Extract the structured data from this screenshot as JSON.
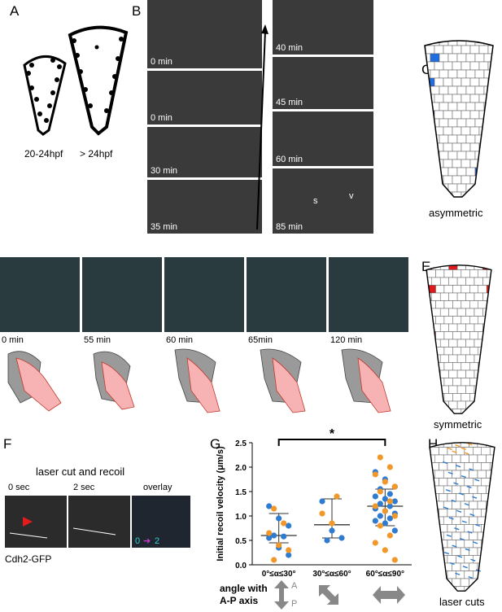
{
  "panels": {
    "A": {
      "label": "A",
      "caption1": "20-24hpf",
      "caption2": "> 24hpf"
    },
    "B": {
      "label": "B",
      "times": [
        "0 min",
        "0 min",
        "30 min",
        "35 min",
        "40 min",
        "45 min",
        "60 min",
        "85 min"
      ],
      "mark_s": "s",
      "mark_v": "v"
    },
    "C": {
      "label": "C",
      "caption": "asymmetric",
      "fill": "#1f6fe0"
    },
    "D": {
      "label": "D",
      "times": [
        "0 min",
        "55 min",
        "60 min",
        "65min",
        "120 min"
      ]
    },
    "E": {
      "label": "E",
      "caption": "symmetric",
      "fill": "#e0191b"
    },
    "F": {
      "label": "F",
      "title": "laser cut and recoil",
      "t0": "0 sec",
      "t1": "2 sec",
      "overlay": "overlay",
      "ov0": "0",
      "ov2": "2",
      "gene": "Cdh2-GFP"
    },
    "G": {
      "label": "G",
      "star": "*",
      "axis_title": "angle with",
      "axis_title2": "A-P axis",
      "A": "A",
      "P": "P"
    },
    "H": {
      "label": "H",
      "caption": "laser cuts"
    }
  },
  "chart_data": {
    "type": "scatter",
    "ylabel": "Initial recoil velocity (μm/s)",
    "ylim": [
      0,
      2.5
    ],
    "yticks": [
      "0.0",
      "0.5",
      "1.0",
      "1.5",
      "2.0",
      "2.5"
    ],
    "categories": [
      "0°≤α≤30°",
      "30°≤α≤60°",
      "60°≤α≤90°"
    ],
    "groups": [
      {
        "median": 0.6,
        "q1": 0.45,
        "q3": 1.05,
        "blue": [
          1.2,
          0.95,
          0.8,
          0.6,
          0.58,
          0.55,
          0.35,
          0.2
        ],
        "orange": [
          1.15,
          0.85,
          0.65,
          0.4,
          0.3,
          0.1
        ]
      },
      {
        "median": 0.82,
        "q1": 0.55,
        "q3": 1.35,
        "blue": [
          1.3,
          0.7,
          0.55,
          0.5
        ],
        "orange": [
          1.4,
          1.05,
          0.85
        ]
      },
      {
        "median": 1.2,
        "q1": 0.8,
        "q3": 1.55,
        "blue": [
          1.9,
          1.75,
          1.6,
          1.55,
          1.45,
          1.4,
          1.35,
          1.3,
          1.25,
          1.2,
          1.15,
          1.1,
          1.05,
          1.0,
          0.95,
          0.9,
          0.85,
          0.7
        ],
        "orange": [
          2.2,
          2.0,
          1.85,
          1.7,
          1.6,
          1.5,
          1.3,
          1.2,
          1.1,
          1.0,
          0.8,
          0.6,
          0.45,
          0.3,
          0.1
        ]
      }
    ],
    "colors": {
      "blue": "#2e7bd0",
      "orange": "#f2982a"
    }
  }
}
